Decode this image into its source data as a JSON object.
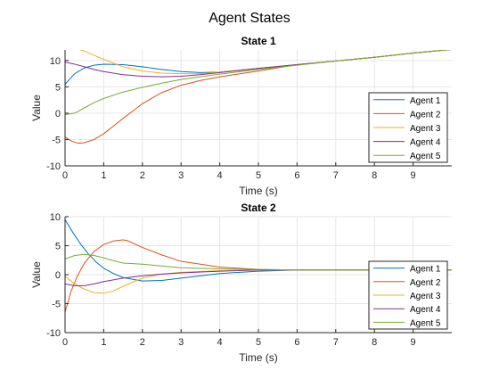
{
  "figure_title": "Agent States",
  "chart_data": [
    {
      "type": "line",
      "title": "State 1",
      "xlabel": "Time (s)",
      "ylabel": "Value",
      "xlim": [
        0,
        10
      ],
      "ylim": [
        -10,
        12
      ],
      "xticks": [
        0,
        1,
        2,
        3,
        4,
        5,
        6,
        7,
        8,
        9
      ],
      "yticks": [
        -10,
        -5,
        0,
        5,
        10
      ],
      "grid": true,
      "legend": "bottom-right",
      "series": [
        {
          "name": "Agent 1",
          "color": "#0072BD",
          "x": [
            0,
            0.25,
            0.5,
            0.75,
            1,
            1.5,
            2,
            2.5,
            3,
            3.5,
            4,
            5,
            6,
            7,
            8,
            9,
            10
          ],
          "y": [
            5.5,
            7.5,
            8.6,
            9.1,
            9.3,
            9.2,
            8.8,
            8.3,
            7.9,
            7.7,
            7.8,
            8.5,
            9.2,
            9.9,
            10.6,
            11.4,
            12.1
          ]
        },
        {
          "name": "Agent 2",
          "color": "#D95319",
          "x": [
            0,
            0.1,
            0.2,
            0.35,
            0.5,
            0.75,
            1,
            1.5,
            2,
            2.5,
            3,
            3.5,
            4,
            5,
            6,
            7,
            8,
            9,
            10
          ],
          "y": [
            -4.5,
            -5.0,
            -5.4,
            -5.7,
            -5.6,
            -5.0,
            -3.9,
            -1.0,
            1.8,
            3.9,
            5.3,
            6.2,
            6.9,
            8.0,
            9.2,
            9.9,
            10.6,
            11.4,
            12.1
          ]
        },
        {
          "name": "Agent 3",
          "color": "#EDB120",
          "x": [
            0,
            0.25,
            0.5,
            0.75,
            1,
            1.5,
            2,
            2.5,
            3,
            3.5,
            4,
            5,
            6,
            7,
            8,
            9,
            10
          ],
          "y": [
            12.5,
            12.3,
            11.8,
            11.0,
            10.2,
            8.8,
            8.0,
            7.6,
            7.5,
            7.5,
            7.8,
            8.5,
            9.2,
            9.9,
            10.6,
            11.4,
            12.1
          ]
        },
        {
          "name": "Agent 4",
          "color": "#7E2F8E",
          "x": [
            0,
            0.25,
            0.5,
            0.75,
            1,
            1.5,
            2,
            2.5,
            3,
            3.5,
            4,
            5,
            6,
            7,
            8,
            9,
            10
          ],
          "y": [
            9.7,
            9.3,
            8.8,
            8.3,
            7.9,
            7.3,
            7.0,
            6.9,
            7.0,
            7.3,
            7.7,
            8.5,
            9.2,
            9.9,
            10.6,
            11.4,
            12.1
          ]
        },
        {
          "name": "Agent 5",
          "color": "#77AC30",
          "x": [
            0,
            0.25,
            0.5,
            0.75,
            1,
            1.5,
            2,
            2.5,
            3,
            3.5,
            4,
            5,
            6,
            7,
            8,
            9,
            10
          ],
          "y": [
            -0.3,
            0.0,
            1.0,
            2.0,
            2.8,
            4.0,
            4.9,
            5.7,
            6.4,
            6.9,
            7.4,
            8.3,
            9.1,
            9.9,
            10.6,
            11.4,
            12.1
          ]
        }
      ]
    },
    {
      "type": "line",
      "title": "State 2",
      "xlabel": "Time (s)",
      "ylabel": "Value",
      "xlim": [
        0,
        10
      ],
      "ylim": [
        -10,
        10
      ],
      "xticks": [
        0,
        1,
        2,
        3,
        4,
        5,
        6,
        7,
        8,
        9
      ],
      "yticks": [
        -10,
        -5,
        0,
        5,
        10
      ],
      "grid": true,
      "legend": "bottom-right",
      "series": [
        {
          "name": "Agent 1",
          "color": "#0072BD",
          "x": [
            0,
            0.2,
            0.4,
            0.6,
            0.8,
            1,
            1.25,
            1.5,
            2,
            2.5,
            3,
            4,
            5,
            6,
            7,
            8,
            9,
            10
          ],
          "y": [
            9.5,
            7.3,
            5.3,
            3.6,
            2.2,
            1.1,
            0.2,
            -0.5,
            -1.1,
            -1.0,
            -0.6,
            0.2,
            0.6,
            0.8,
            0.8,
            0.8,
            0.8,
            0.8
          ]
        },
        {
          "name": "Agent 2",
          "color": "#D95319",
          "x": [
            0,
            0.15,
            0.3,
            0.5,
            0.75,
            1,
            1.25,
            1.5,
            1.6,
            2,
            2.5,
            3,
            4,
            5,
            6,
            7,
            8,
            9,
            10
          ],
          "y": [
            -6.5,
            -3.0,
            -0.5,
            2.0,
            4.0,
            5.2,
            5.8,
            6.0,
            5.9,
            4.7,
            3.4,
            2.3,
            1.3,
            0.9,
            0.8,
            0.8,
            0.8,
            0.8,
            0.8
          ]
        },
        {
          "name": "Agent 3",
          "color": "#EDB120",
          "x": [
            0,
            0.25,
            0.5,
            0.75,
            1,
            1.25,
            1.5,
            2,
            2.5,
            3,
            4,
            5,
            6,
            7,
            8,
            9,
            10
          ],
          "y": [
            -0.3,
            -1.6,
            -2.5,
            -3.1,
            -3.2,
            -2.8,
            -2.0,
            -0.6,
            0.1,
            0.4,
            0.7,
            0.8,
            0.8,
            0.8,
            0.8,
            0.8,
            0.8
          ]
        },
        {
          "name": "Agent 4",
          "color": "#7E2F8E",
          "x": [
            0,
            0.25,
            0.5,
            0.75,
            1,
            1.5,
            2,
            2.5,
            3,
            4,
            5,
            6,
            7,
            8,
            9,
            10
          ],
          "y": [
            -1.6,
            -1.9,
            -1.9,
            -1.6,
            -1.2,
            -0.6,
            -0.2,
            0.1,
            0.3,
            0.6,
            0.8,
            0.8,
            0.8,
            0.8,
            0.8,
            0.8
          ]
        },
        {
          "name": "Agent 5",
          "color": "#77AC30",
          "x": [
            0,
            0.25,
            0.5,
            0.75,
            1,
            1.25,
            1.5,
            2,
            2.5,
            3,
            4,
            5,
            6,
            7,
            8,
            9,
            10
          ],
          "y": [
            2.7,
            3.3,
            3.5,
            3.3,
            2.9,
            2.4,
            2.0,
            1.8,
            1.5,
            1.2,
            1.0,
            0.9,
            0.8,
            0.8,
            0.8,
            0.8,
            0.8
          ]
        }
      ]
    }
  ]
}
